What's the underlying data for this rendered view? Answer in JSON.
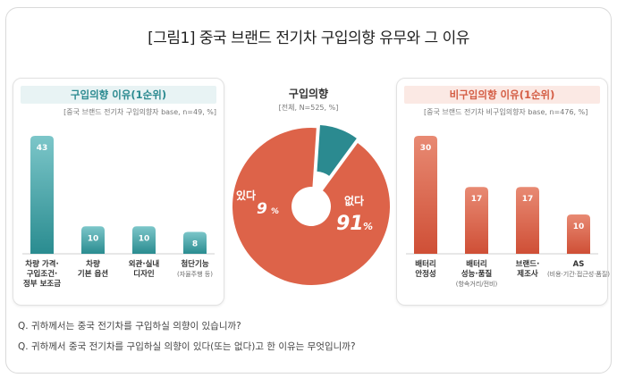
{
  "title": "[그림1] 중국 브랜드 전기차 구입의향 유무와 그 이유",
  "chart_data": [
    {
      "type": "bar",
      "title": "구입의향 이유(1순위)",
      "subtitle": "[중국 브랜드 전기차 구입의향자 base, n=49, %]",
      "categories": [
        {
          "label": [
            "차량 가격·",
            "구입조건·",
            "정부 보조금"
          ],
          "note": ""
        },
        {
          "label": [
            "차량",
            "기본 옵션"
          ],
          "note": ""
        },
        {
          "label": [
            "외관·실내",
            "디자인"
          ],
          "note": ""
        },
        {
          "label": [
            "첨단기능"
          ],
          "note": "(자율주행 등)"
        }
      ],
      "values": [
        43,
        10,
        10,
        8
      ],
      "colors": {
        "top": "#7cc6c9",
        "bottom": "#2a8c90"
      }
    },
    {
      "type": "pie",
      "title": "구입의향",
      "subtitle": "[전체, N=525, %]",
      "slices": [
        {
          "label": "있다",
          "value": 9,
          "value_text": "9",
          "unit": "%",
          "color": "#2b8a90"
        },
        {
          "label": "없다",
          "value": 91,
          "value_text": "91",
          "unit": "%",
          "color": "#dd6349"
        }
      ]
    },
    {
      "type": "bar",
      "title": "비구입의향 이유(1순위)",
      "subtitle": "[중국 브랜드 전기차 비구입의향자 base, n=476, %]",
      "categories": [
        {
          "label": [
            "배터리",
            "안정성"
          ],
          "note": ""
        },
        {
          "label": [
            "배터리",
            "성능·품질"
          ],
          "note": "(항속거리/전비)"
        },
        {
          "label": [
            "브랜드·",
            "제조사"
          ],
          "note": ""
        },
        {
          "label": [
            "AS"
          ],
          "note": "(비용·기간·접근성·품질)"
        }
      ],
      "values": [
        30,
        17,
        17,
        10
      ],
      "colors": {
        "top": "#e88a73",
        "bottom": "#cf4f36"
      }
    }
  ],
  "questions": [
    "Q. 귀하께서는 중국 전기차를 구입하실 의향이 있습니까?",
    "Q. 귀하께서 중국 전기차를 구입하실 의향이 있다(또는 없다)고 한 이유는 무엇입니까?"
  ]
}
